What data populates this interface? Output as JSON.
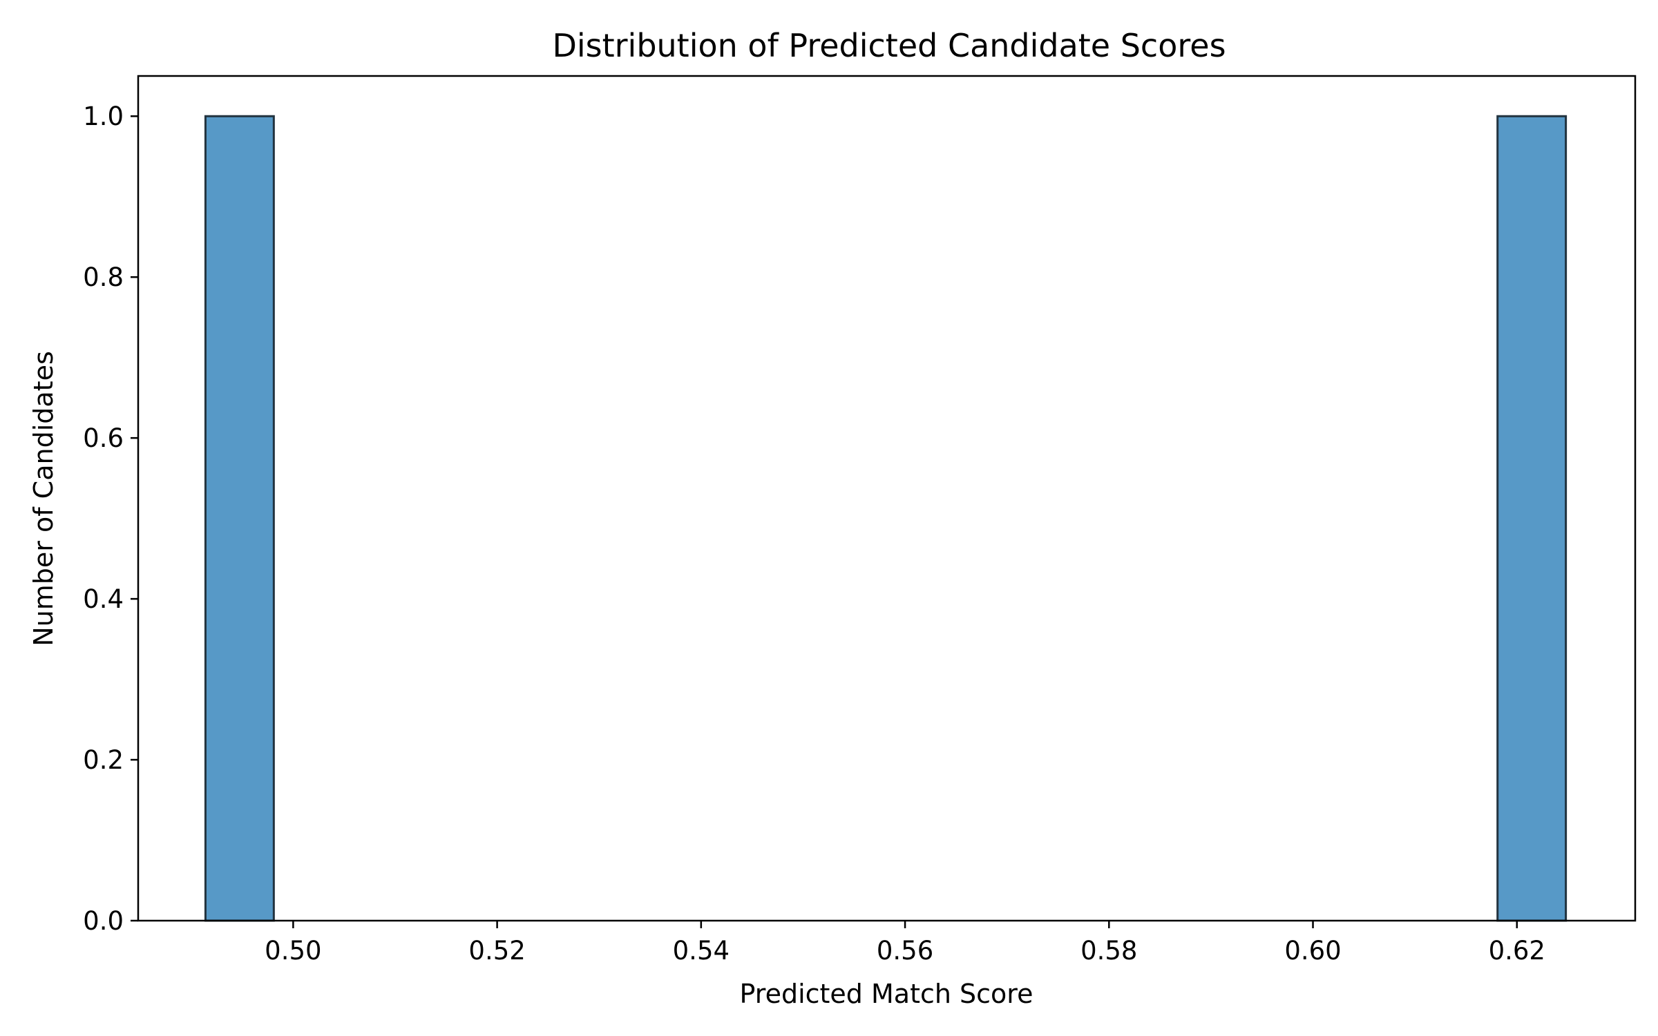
{
  "chart_data": {
    "type": "bar",
    "title": "Distribution of Predicted Candidate Scores",
    "xlabel": "Predicted Match Score",
    "ylabel": "Number of Candidates",
    "xlim": [
      0.4848,
      0.6316
    ],
    "ylim": [
      0.0,
      1.05
    ],
    "x_ticks": [
      0.5,
      0.52,
      0.54,
      0.56,
      0.58,
      0.6,
      0.62
    ],
    "x_tick_labels": [
      "0.50",
      "0.52",
      "0.54",
      "0.56",
      "0.58",
      "0.60",
      "0.62"
    ],
    "y_ticks": [
      0.0,
      0.2,
      0.4,
      0.6,
      0.8,
      1.0
    ],
    "y_tick_labels": [
      "0.0",
      "0.2",
      "0.4",
      "0.6",
      "0.8",
      "1.0"
    ],
    "bins": [
      {
        "start": 0.4914,
        "end": 0.4981,
        "count": 1
      },
      {
        "start": 0.6181,
        "end": 0.6248,
        "count": 1
      }
    ],
    "bar_color": "#5799c7",
    "edge_color": "#22333f",
    "grid": false
  }
}
